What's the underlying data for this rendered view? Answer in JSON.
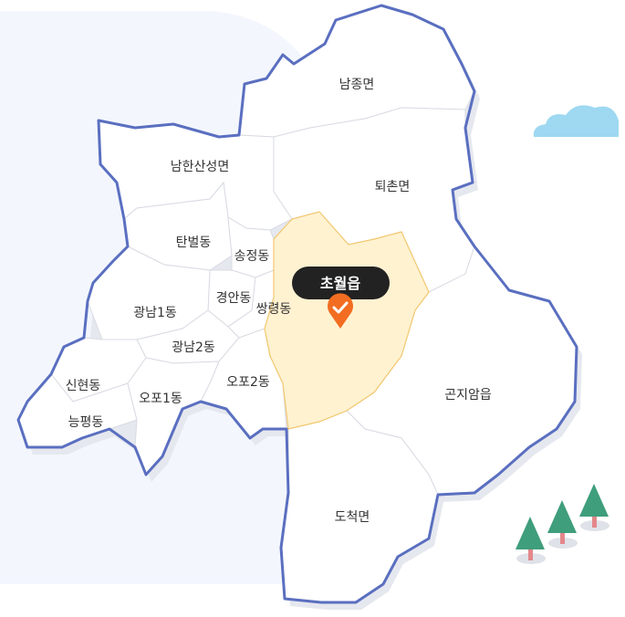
{
  "map": {
    "regions": [
      {
        "id": "namjong",
        "label": "남종면"
      },
      {
        "id": "namhansanseong",
        "label": "남한산성면"
      },
      {
        "id": "toechon",
        "label": "퇴촌면"
      },
      {
        "id": "tanbeol",
        "label": "탄벌동"
      },
      {
        "id": "songjeong",
        "label": "송정동"
      },
      {
        "id": "gyeongan",
        "label": "경안동"
      },
      {
        "id": "ssangnyeong",
        "label": "쌍령동"
      },
      {
        "id": "gwangnam1",
        "label": "광남1동"
      },
      {
        "id": "gwangnam2",
        "label": "광남2동"
      },
      {
        "id": "sinhyeon",
        "label": "신현동"
      },
      {
        "id": "neungpyeong",
        "label": "능평동"
      },
      {
        "id": "opo1",
        "label": "오포1동"
      },
      {
        "id": "opo2",
        "label": "오포2동"
      },
      {
        "id": "gonjiam",
        "label": "곤지암읍"
      },
      {
        "id": "docheok",
        "label": "도척면"
      }
    ],
    "selected": {
      "label": "초월읍",
      "marker_icon": "check-pin-icon"
    }
  },
  "colors": {
    "outline": "#5a6fc0",
    "selected_fill": "#fff2d1",
    "tooltip_bg": "#222222",
    "pin": "#f26d21",
    "background_panel": "#f3f6fd",
    "cloud": "#9ed8f1",
    "tree": "#3f9e7c"
  }
}
